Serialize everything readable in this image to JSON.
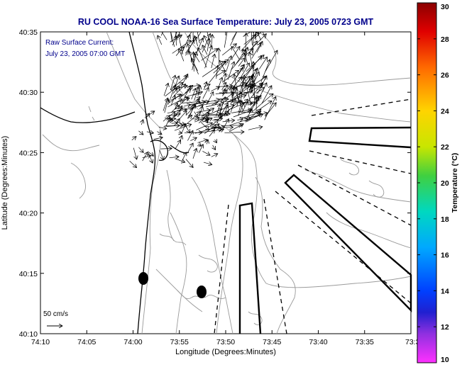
{
  "title": "RU COOL  NOAA-16  Sea Surface Temperature:  July 23, 2005 0723 GMT",
  "inset_label_1": "Raw Surface Current:",
  "inset_label_2": "July 23, 2005 07:00 GMT",
  "scale_label": "50 cm/s",
  "xlabel": "Longitude (Degrees:Minutes)",
  "ylabel": "Latitude (Degrees:Minutes)",
  "x_ticks": [
    "74:10",
    "74:05",
    "74:00",
    "73:55",
    "73:50",
    "73:45",
    "73:40",
    "73:35",
    "73:3"
  ],
  "y_ticks": [
    "40:35",
    "40:30",
    "40:25",
    "40:20",
    "40:15",
    "40:10"
  ],
  "colorbar": {
    "label": "Temperature (°C)",
    "ticks": [
      "30",
      "28",
      "26",
      "24",
      "22",
      "20",
      "18",
      "16",
      "14",
      "12",
      "10"
    ],
    "min": 10,
    "max": 30
  },
  "colors": {
    "title": "#00008b",
    "annotation": "#00008b",
    "contour": "#9a9a9a",
    "vectors": "#000000"
  }
}
